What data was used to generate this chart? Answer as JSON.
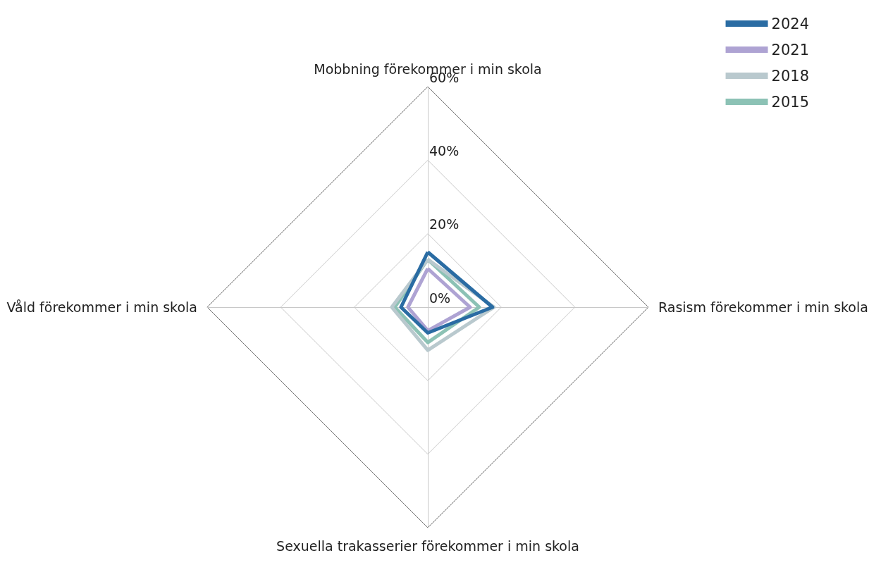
{
  "chart_data": {
    "type": "radar",
    "categories": [
      "Mobbning förekommer i min skola",
      "Rasism förekommer i min skola",
      "Sexuella trakasserier förekommer i min skola",
      "Våld förekommer i min skola"
    ],
    "series": [
      {
        "name": "2015",
        "color": "#8cc2b5",
        "values": [
          13,
          14,
          9.6,
          9
        ]
      },
      {
        "name": "2018",
        "color": "#b9c9ce",
        "values": [
          13,
          18,
          11.7,
          9.8
        ]
      },
      {
        "name": "2021",
        "color": "#aea3d3",
        "values": [
          10.5,
          11.5,
          6.4,
          5.4
        ]
      },
      {
        "name": "2024",
        "color": "#2a6ca3",
        "values": [
          15,
          17.6,
          7,
          7.3
        ]
      }
    ],
    "ylim": [
      0,
      60
    ],
    "yticks": [
      {
        "value": 0,
        "label": "0%"
      },
      {
        "value": 20,
        "label": "20%"
      },
      {
        "value": 40,
        "label": "40%"
      },
      {
        "value": 60,
        "label": "60%"
      }
    ],
    "legend": "top right",
    "grid": true,
    "marker": "none",
    "line_style": "solid"
  }
}
